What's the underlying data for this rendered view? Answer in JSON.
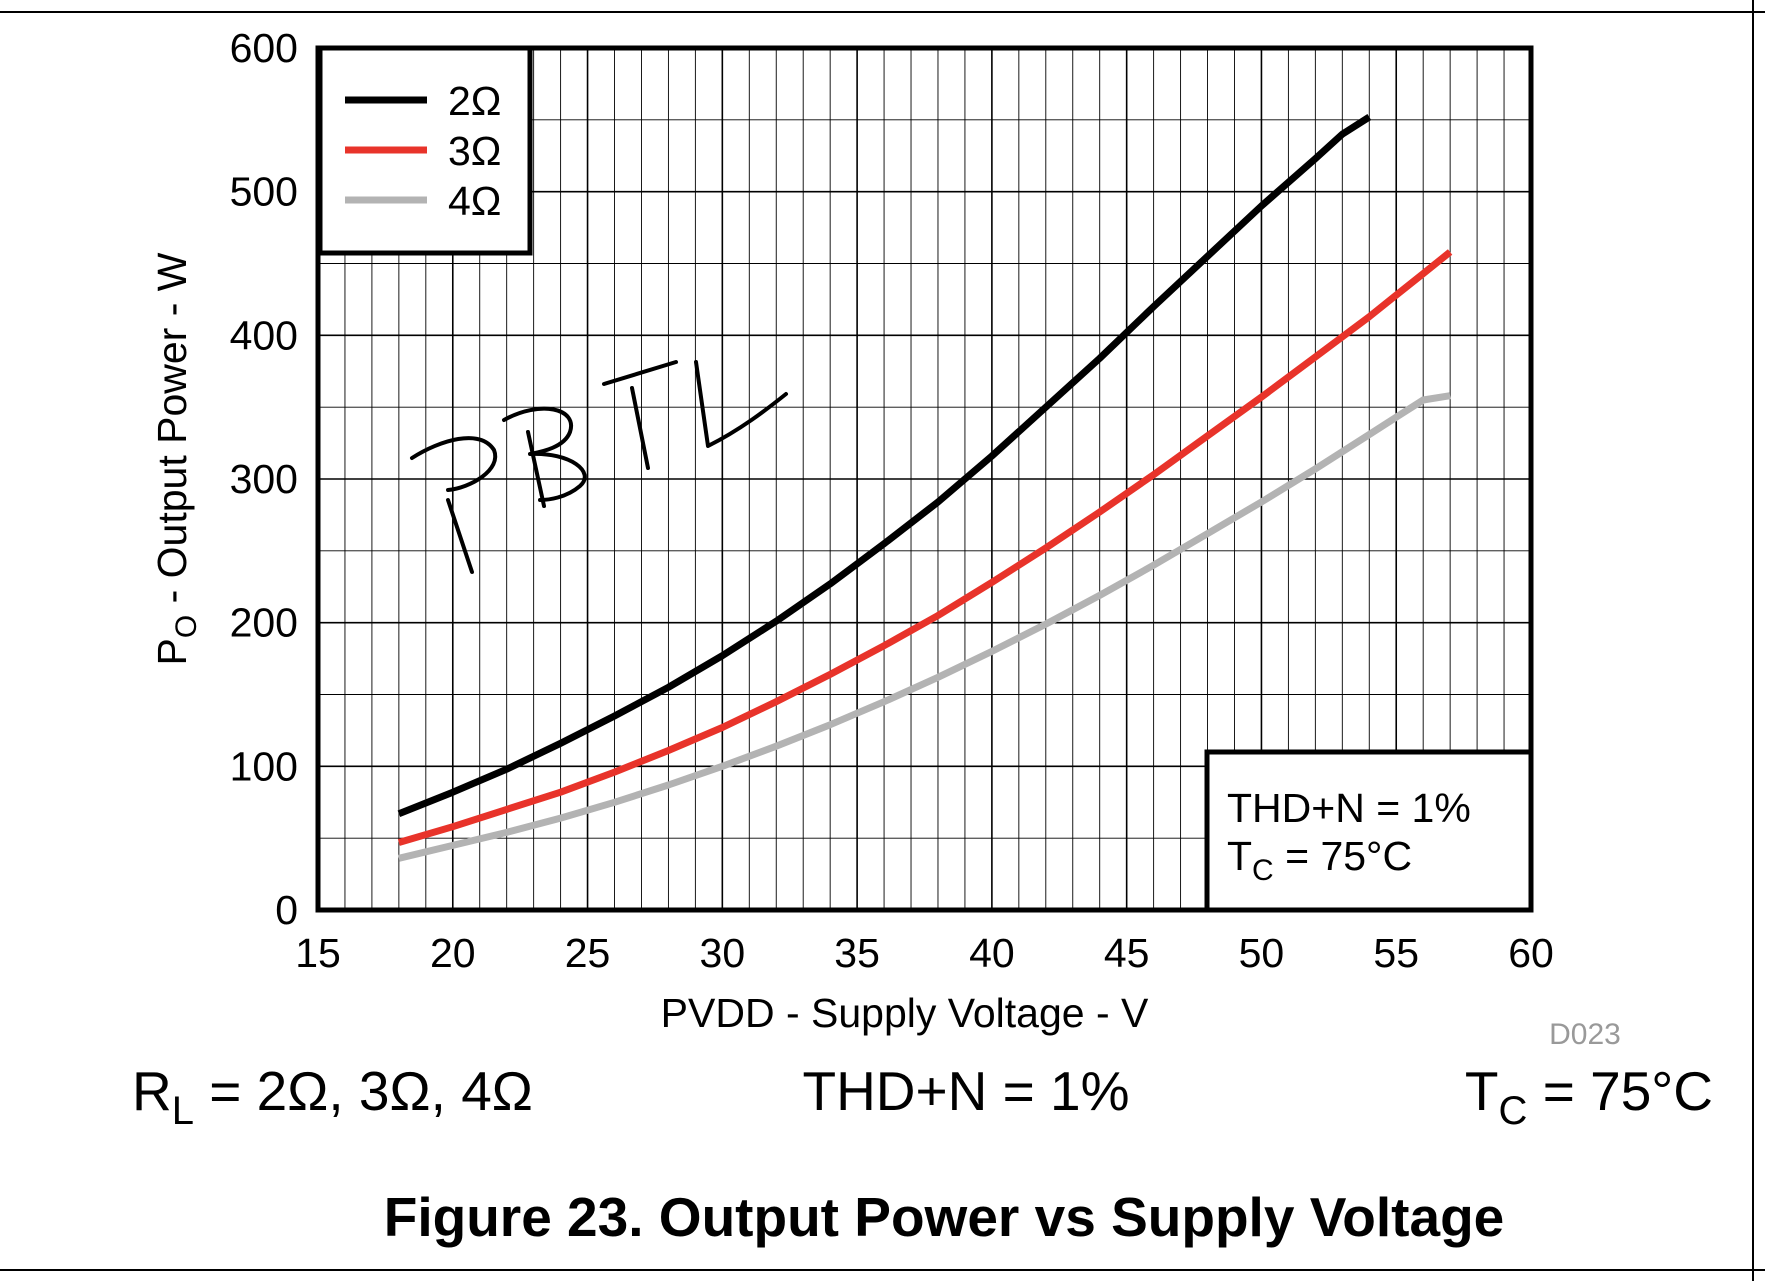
{
  "chart_data": {
    "type": "line",
    "xlabel": "PVDD - Supply Voltage - V",
    "ylabel_main": "P",
    "ylabel_sub": "O",
    "ylabel_rest": " - Output Power - W",
    "xlim": [
      15,
      60
    ],
    "ylim": [
      0,
      600
    ],
    "x_ticks": [
      15,
      20,
      25,
      30,
      35,
      40,
      45,
      50,
      55,
      60
    ],
    "y_ticks": [
      0,
      100,
      200,
      300,
      400,
      500,
      600
    ],
    "x_minor_step": 1,
    "y_minor_step": 50,
    "grid": true,
    "legend_position": "top-left",
    "series": [
      {
        "name": "2Ω",
        "color": "#000000",
        "x": [
          18,
          20,
          22,
          24,
          26,
          28,
          30,
          32,
          34,
          36,
          38,
          40,
          42,
          44,
          46,
          48,
          50,
          52,
          53,
          54
        ],
        "y": [
          67,
          82,
          98,
          116,
          135,
          155,
          177,
          201,
          227,
          255,
          284,
          316,
          350,
          384,
          420,
          455,
          490,
          523,
          540,
          552
        ]
      },
      {
        "name": "3Ω",
        "color": "#e8332a",
        "x": [
          18,
          20,
          22,
          24,
          26,
          28,
          30,
          32,
          34,
          36,
          38,
          40,
          42,
          44,
          46,
          48,
          50,
          52,
          54,
          55,
          56,
          57
        ],
        "y": [
          47,
          58,
          70,
          82,
          96,
          111,
          127,
          145,
          164,
          184,
          205,
          228,
          252,
          277,
          303,
          330,
          357,
          385,
          413,
          428,
          443,
          458
        ]
      },
      {
        "name": "4Ω",
        "color": "#b3b3b3",
        "x": [
          18,
          20,
          22,
          24,
          26,
          28,
          30,
          32,
          34,
          36,
          38,
          40,
          42,
          44,
          46,
          48,
          50,
          52,
          54,
          55,
          56,
          57
        ],
        "y": [
          36,
          45,
          54,
          64,
          75,
          87,
          100,
          114,
          129,
          145,
          162,
          180,
          199,
          219,
          240,
          262,
          284,
          307,
          331,
          343,
          355,
          358
        ]
      }
    ],
    "annotation": {
      "line1": "THD+N = 1%",
      "line2_main": "T",
      "line2_sub": "C",
      "line2_rest": " = 75°C"
    },
    "handwritten_note": "PBTL",
    "figure_id": "D023"
  },
  "conditions": {
    "rl_main": "R",
    "rl_sub": "L",
    "rl_rest": " = 2Ω, 3Ω, 4Ω",
    "thd": "THD+N = 1%",
    "tc_main": "T",
    "tc_sub": "C",
    "tc_rest": " = 75°C"
  },
  "caption": "Figure 23. Output Power vs Supply Voltage"
}
